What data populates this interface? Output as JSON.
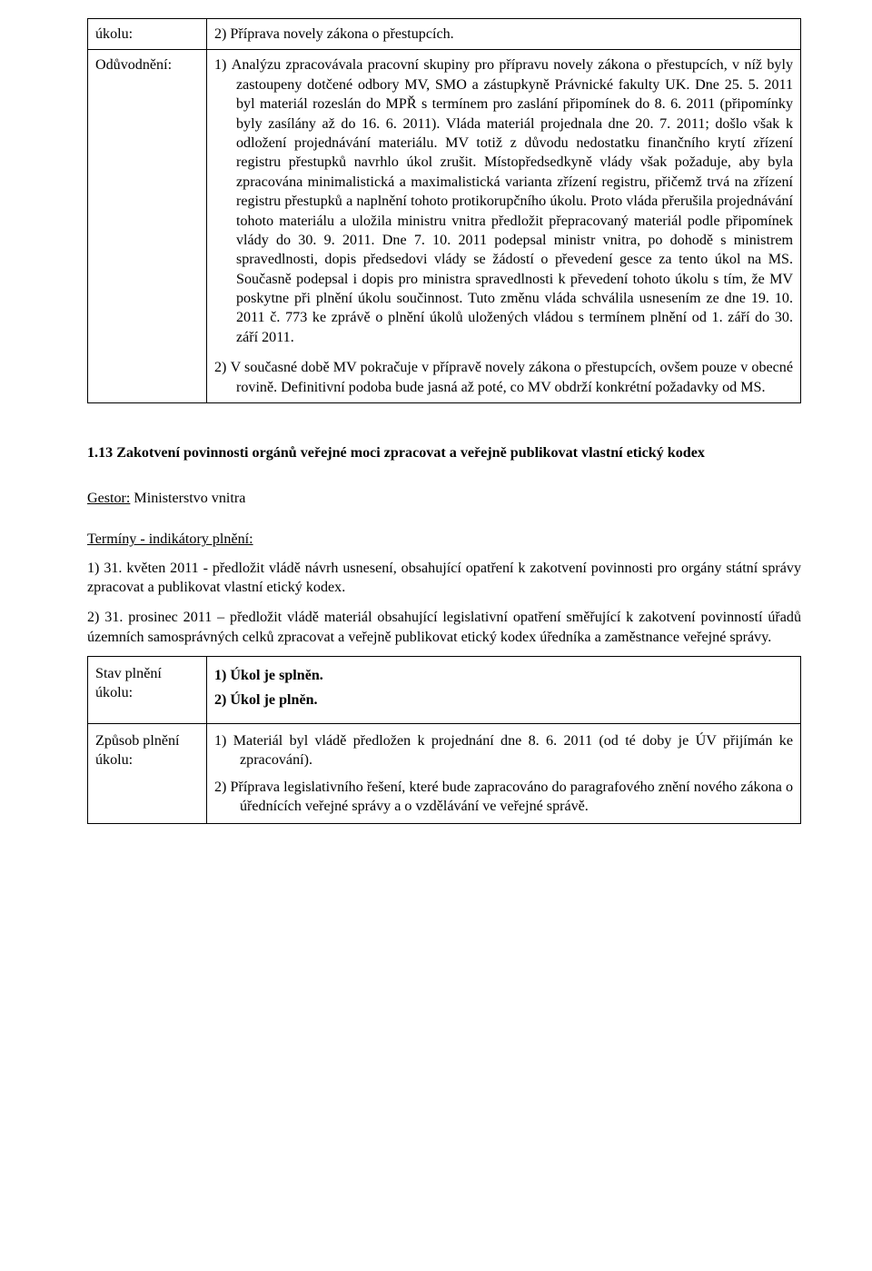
{
  "row1": {
    "label": "úkolu:",
    "text": "2) Příprava novely zákona o přestupcích."
  },
  "row2": {
    "label": "Odůvodnění:",
    "p1": "1) Analýzu zpracovávala pracovní skupiny pro přípravu novely zákona o přestupcích, v níž byly zastoupeny dotčené odbory MV, SMO a zástupkyně Právnické fakulty UK. Dne 25. 5. 2011 byl materiál rozeslán do MPŘ s termínem pro zaslání připomínek do 8. 6. 2011 (připomínky byly zasílány až do 16. 6. 2011). Vláda materiál projednala dne 20. 7. 2011; došlo však k odložení projednávání materiálu. MV totiž z důvodu nedostatku finančního krytí zřízení registru přestupků navrhlo úkol zrušit. Místopředsedkyně vlády však požaduje, aby byla zpracována minimalistická a maximalistická varianta zřízení registru, přičemž trvá na zřízení registru přestupků a naplnění tohoto protikorupčního úkolu. Proto vláda přerušila projednávání tohoto materiálu a uložila ministru vnitra předložit přepracovaný materiál podle připomínek vlády do 30. 9. 2011. Dne 7. 10. 2011 podepsal ministr vnitra, po dohodě s ministrem spravedlnosti, dopis předsedovi vlády se žádostí o převedení gesce za tento úkol na MS. Současně podepsal i dopis pro ministra spravedlnosti k převedení tohoto úkolu s tím, že MV poskytne při plnění úkolu součinnost. Tuto změnu vláda schválila usnesením ze dne 19. 10. 2011 č. 773 ke zprávě o plnění úkolů uložených vládou s termínem plnění od 1. září do 30. září 2011.",
    "p2": "2) V současné době MV pokračuje v přípravě novely zákona o přestupcích, ovšem pouze v obecné rovině. Definitivní podoba bude jasná až poté, co MV obdrží konkrétní požadavky od MS."
  },
  "section_title": "1.13 Zakotvení povinnosti orgánů veřejné moci zpracovat a veřejně publikovat vlastní etický kodex",
  "gestor": {
    "label": "Gestor:",
    "value": " Ministerstvo vnitra"
  },
  "terminy": {
    "head": "Termíny - indikátory plnění:",
    "item1": "1) 31. květen 2011 - předložit vládě návrh usnesení, obsahující opatření k zakotvení povinnosti pro orgány státní správy zpracovat a publikovat vlastní etický kodex.",
    "item2": "2) 31. prosinec 2011 – předložit vládě materiál obsahující legislativní opatření směřující k zakotvení povinností úřadů územních samosprávných celků zpracovat a veřejně publikovat etický kodex úředníka a zaměstnance veřejné správy."
  },
  "status": {
    "label": "Stav plnění úkolu:",
    "line1": "1) Úkol je splněn.",
    "line2": "2) Úkol je plněn."
  },
  "method": {
    "label": "Způsob plnění úkolu:",
    "item1": "1) Materiál byl vládě předložen k projednání dne 8. 6. 2011 (od té doby je ÚV přijímán ke zpracování).",
    "item2": "2) Příprava legislativního řešení, které bude zapracováno do paragrafového znění nového zákona o úřednících veřejné správy a o vzdělávání ve veřejné správě."
  }
}
